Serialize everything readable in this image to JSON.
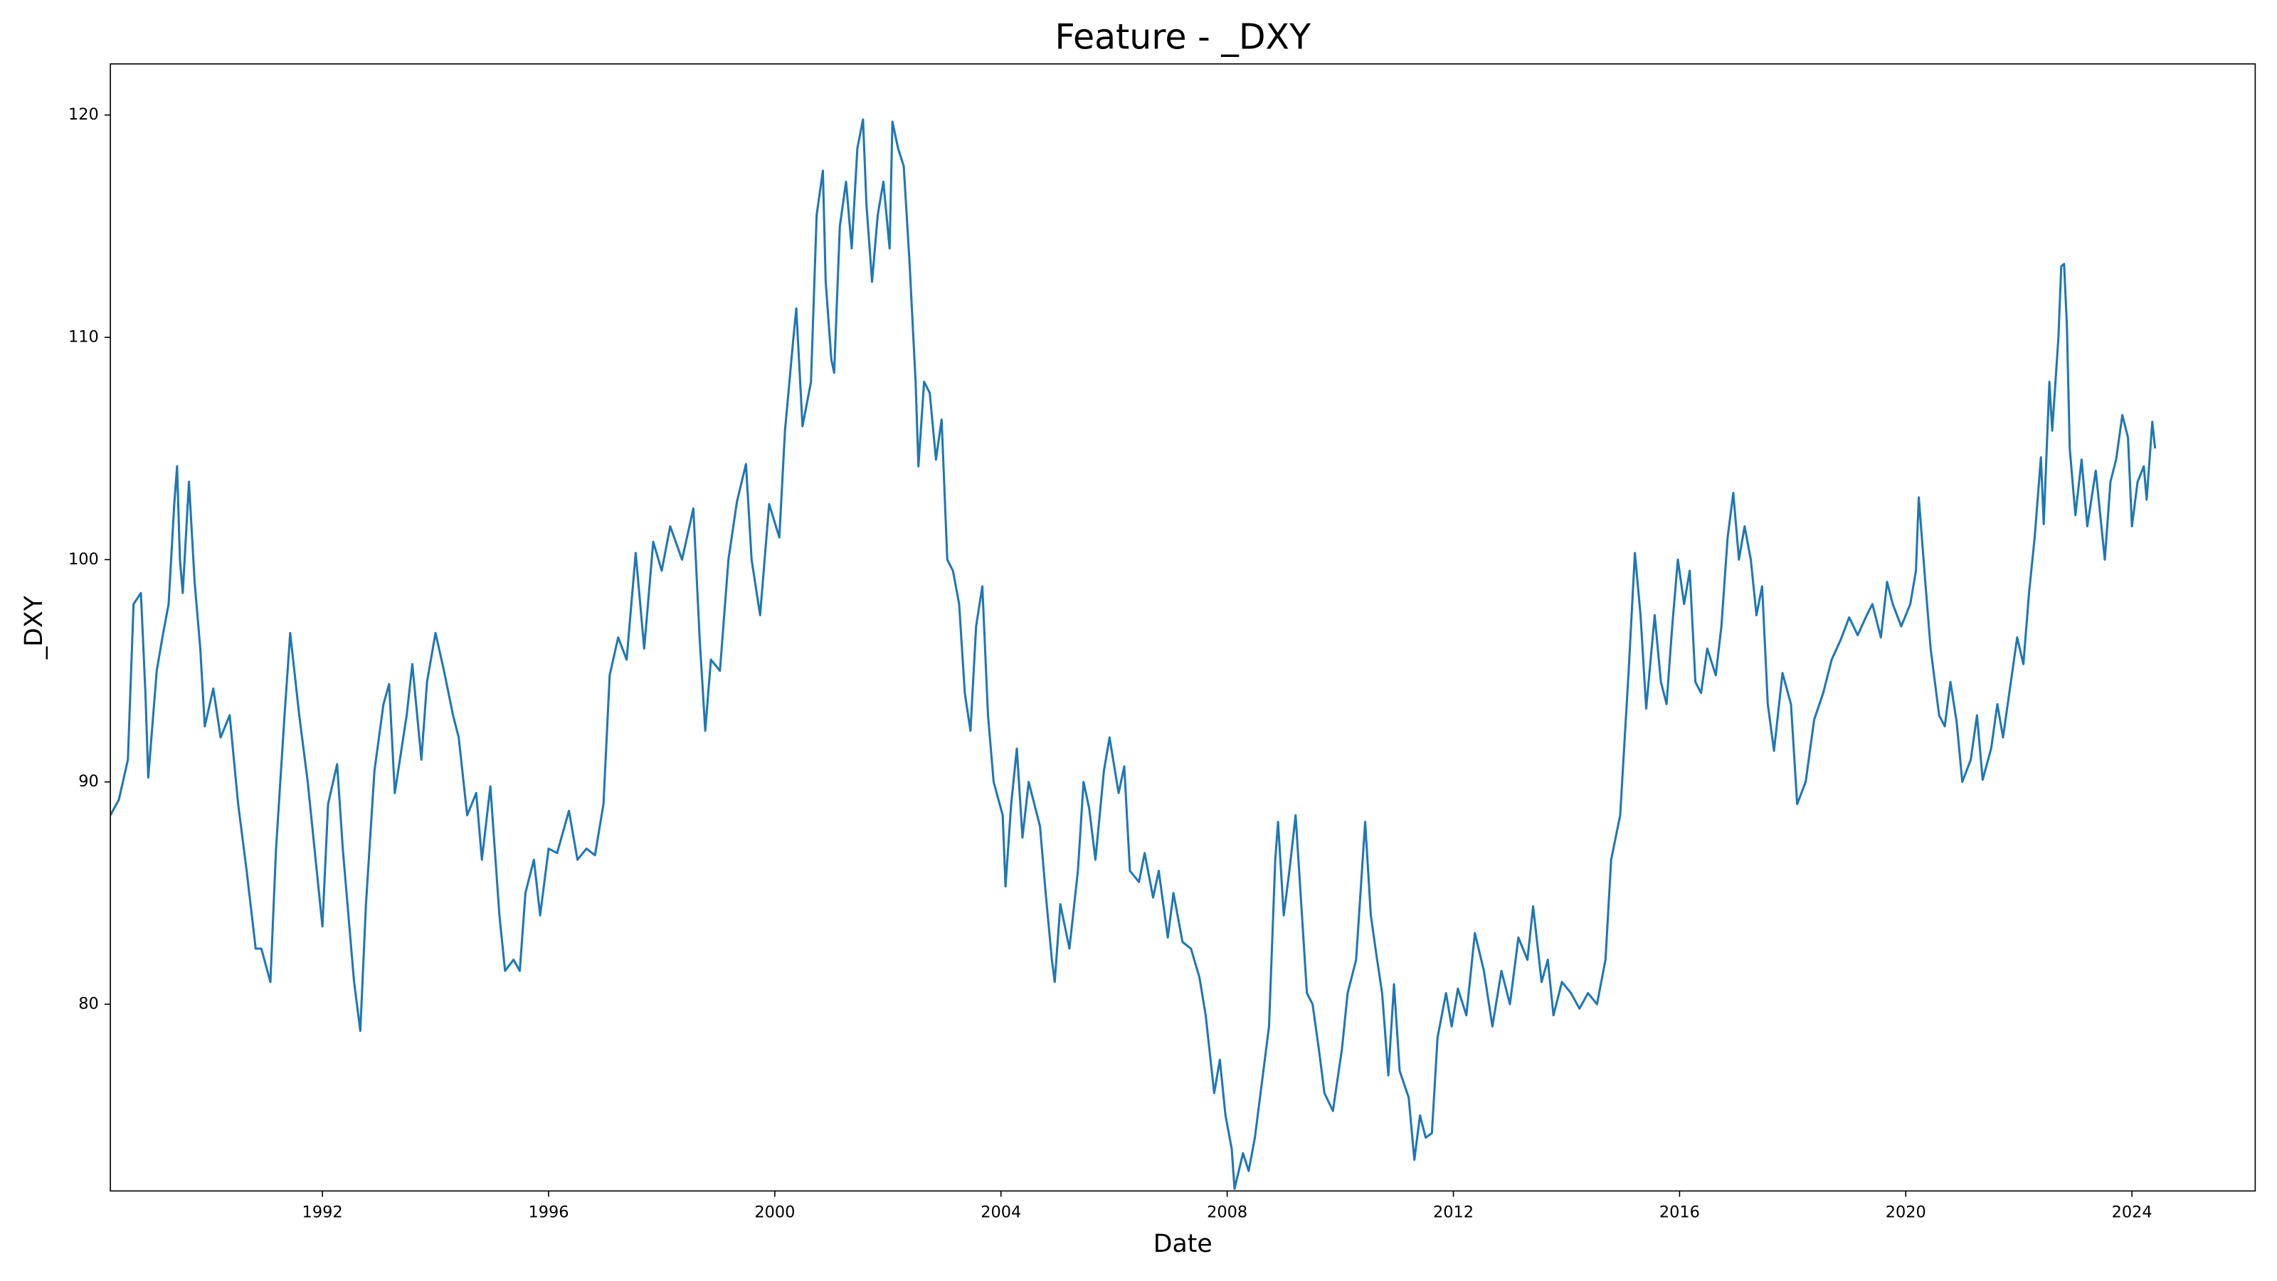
{
  "chart_data": {
    "type": "line",
    "title": "Feature - _DXY",
    "x_label": "Date",
    "y_label": "_DXY",
    "color": "#1f77b4",
    "xlim": [
      1988.25,
      2026.18
    ],
    "xticks": [
      1992,
      1996,
      2000,
      2004,
      2008,
      2012,
      2016,
      2020,
      2024
    ],
    "ylim": [
      71.6,
      122.3
    ],
    "yticks": [
      80,
      90,
      100,
      110,
      120
    ],
    "x": [
      1988.25,
      1988.4,
      1988.56,
      1988.66,
      1988.79,
      1988.87,
      1988.92,
      1989.07,
      1989.17,
      1989.28,
      1989.38,
      1989.43,
      1989.48,
      1989.53,
      1989.64,
      1989.74,
      1989.84,
      1989.92,
      1990.07,
      1990.2,
      1990.36,
      1990.51,
      1990.66,
      1990.82,
      1990.92,
      1991.08,
      1991.18,
      1991.33,
      1991.43,
      1991.59,
      1991.74,
      1991.9,
      1992.0,
      1992.1,
      1992.26,
      1992.36,
      1992.46,
      1992.56,
      1992.67,
      1992.77,
      1992.92,
      1993.08,
      1993.18,
      1993.28,
      1993.49,
      1993.59,
      1993.75,
      1993.85,
      1994.0,
      1994.15,
      1994.31,
      1994.41,
      1994.56,
      1994.72,
      1994.82,
      1994.97,
      1995.13,
      1995.23,
      1995.38,
      1995.49,
      1995.59,
      1995.74,
      1995.85,
      1996.0,
      1996.15,
      1996.36,
      1996.51,
      1996.67,
      1996.82,
      1996.97,
      1997.08,
      1997.23,
      1997.38,
      1997.54,
      1997.69,
      1997.85,
      1998.0,
      1998.15,
      1998.36,
      1998.56,
      1998.67,
      1998.77,
      1998.87,
      1999.03,
      1999.18,
      1999.33,
      1999.49,
      1999.59,
      1999.74,
      1999.9,
      2000.08,
      2000.18,
      2000.33,
      2000.38,
      2000.49,
      2000.64,
      2000.74,
      2000.85,
      2000.9,
      2001.0,
      2001.05,
      2001.15,
      2001.26,
      2001.36,
      2001.46,
      2001.56,
      2001.62,
      2001.72,
      2001.82,
      2001.92,
      2002.03,
      2002.08,
      2002.18,
      2002.28,
      2002.38,
      2002.49,
      2002.54,
      2002.64,
      2002.74,
      2002.85,
      2002.95,
      2003.05,
      2003.15,
      2003.26,
      2003.36,
      2003.46,
      2003.56,
      2003.67,
      2003.77,
      2003.87,
      2004.03,
      2004.08,
      2004.18,
      2004.28,
      2004.38,
      2004.49,
      2004.59,
      2004.69,
      2004.79,
      2004.9,
      2004.95,
      2005.05,
      2005.21,
      2005.36,
      2005.46,
      2005.56,
      2005.67,
      2005.82,
      2005.92,
      2006.08,
      2006.18,
      2006.28,
      2006.44,
      2006.54,
      2006.69,
      2006.79,
      2006.95,
      2007.05,
      2007.21,
      2007.36,
      2007.51,
      2007.62,
      2007.77,
      2007.87,
      2007.97,
      2008.08,
      2008.13,
      2008.28,
      2008.38,
      2008.49,
      2008.64,
      2008.74,
      2008.85,
      2008.9,
      2009.0,
      2009.1,
      2009.21,
      2009.31,
      2009.41,
      2009.51,
      2009.62,
      2009.72,
      2009.87,
      2010.03,
      2010.13,
      2010.28,
      2010.44,
      2010.54,
      2010.64,
      2010.74,
      2010.85,
      2010.95,
      2011.05,
      2011.21,
      2011.31,
      2011.41,
      2011.51,
      2011.62,
      2011.72,
      2011.87,
      2011.97,
      2012.08,
      2012.23,
      2012.38,
      2012.54,
      2012.69,
      2012.85,
      2013.0,
      2013.15,
      2013.31,
      2013.41,
      2013.56,
      2013.67,
      2013.77,
      2013.92,
      2014.08,
      2014.23,
      2014.38,
      2014.54,
      2014.69,
      2014.79,
      2014.95,
      2015.1,
      2015.21,
      2015.31,
      2015.41,
      2015.56,
      2015.67,
      2015.77,
      2015.87,
      2015.97,
      2016.08,
      2016.18,
      2016.28,
      2016.38,
      2016.49,
      2016.64,
      2016.74,
      2016.85,
      2016.95,
      2017.05,
      2017.15,
      2017.26,
      2017.36,
      2017.46,
      2017.56,
      2017.67,
      2017.82,
      2017.97,
      2018.08,
      2018.23,
      2018.38,
      2018.54,
      2018.69,
      2018.85,
      2019.0,
      2019.15,
      2019.31,
      2019.41,
      2019.56,
      2019.67,
      2019.77,
      2019.92,
      2020.08,
      2020.18,
      2020.23,
      2020.33,
      2020.44,
      2020.59,
      2020.69,
      2020.79,
      2020.9,
      2021.0,
      2021.15,
      2021.26,
      2021.36,
      2021.51,
      2021.62,
      2021.72,
      2021.82,
      2021.97,
      2022.08,
      2022.18,
      2022.28,
      2022.39,
      2022.44,
      2022.54,
      2022.59,
      2022.7,
      2022.75,
      2022.8,
      2022.85,
      2022.9,
      2023.0,
      2023.11,
      2023.21,
      2023.36,
      2023.52,
      2023.62,
      2023.72,
      2023.83,
      2023.93,
      2024.0,
      2024.1,
      2024.21,
      2024.26,
      2024.36,
      2024.41
    ],
    "values": [
      88.5,
      89.2,
      91,
      98,
      98.5,
      94,
      90.2,
      95,
      96.5,
      98,
      102.5,
      104.2,
      100,
      98.5,
      103.5,
      99,
      96,
      92.5,
      94.2,
      92,
      93,
      89,
      86,
      82.5,
      82.5,
      81,
      87,
      93,
      96.7,
      93,
      90,
      86,
      83.5,
      89,
      90.8,
      87,
      84,
      81,
      78.8,
      84.5,
      90.5,
      93.5,
      94.4,
      89.5,
      93,
      95.3,
      91,
      94.5,
      96.7,
      95,
      93,
      92,
      88.5,
      89.5,
      86.5,
      89.8,
      84,
      81.5,
      82,
      81.5,
      85,
      86.5,
      84,
      87,
      86.8,
      88.7,
      86.5,
      87,
      86.7,
      89,
      94.8,
      96.5,
      95.5,
      100.3,
      96,
      100.8,
      99.5,
      101.5,
      100,
      102.3,
      96.5,
      92.3,
      95.5,
      95,
      100,
      102.6,
      104.3,
      100,
      97.5,
      102.5,
      101,
      105.8,
      110,
      111.3,
      106,
      108,
      115.5,
      117.5,
      112.5,
      109,
      108.4,
      115,
      117,
      114,
      118.5,
      119.8,
      116,
      112.5,
      115.5,
      117,
      114,
      119.7,
      118.5,
      117.7,
      113.5,
      108,
      104.2,
      108,
      107.5,
      104.5,
      106.3,
      100,
      99.5,
      98,
      94,
      92.3,
      97,
      98.8,
      93,
      90,
      88.5,
      85.3,
      89,
      91.5,
      87.5,
      90,
      89,
      88,
      85,
      82,
      81,
      84.5,
      82.5,
      86,
      90,
      88.8,
      86.5,
      90.5,
      92,
      89.5,
      90.7,
      86,
      85.5,
      86.8,
      84.8,
      86,
      83,
      85,
      82.8,
      82.5,
      81.2,
      79.5,
      76,
      77.5,
      75,
      73.5,
      71.7,
      73.3,
      72.5,
      74,
      77,
      79,
      86.5,
      88.2,
      84,
      86,
      88.5,
      84.5,
      80.5,
      80,
      78,
      76,
      75.2,
      78,
      80.5,
      82,
      88.2,
      84,
      82.2,
      80.5,
      76.8,
      80.9,
      77,
      75.8,
      73,
      75,
      74,
      74.2,
      78.5,
      80.5,
      79,
      80.7,
      79.5,
      83.2,
      81.5,
      79,
      81.5,
      80,
      83,
      82,
      84.4,
      81,
      82,
      79.5,
      81,
      80.5,
      79.8,
      80.5,
      80,
      82,
      86.5,
      88.5,
      95,
      100.3,
      97.5,
      93.3,
      97.5,
      94.5,
      93.5,
      97,
      100,
      98,
      99.5,
      94.5,
      94,
      96,
      94.8,
      97,
      101,
      103,
      100,
      101.5,
      100,
      97.5,
      98.8,
      93.5,
      91.4,
      94.9,
      93.5,
      89,
      90,
      92.8,
      94,
      95.5,
      96.4,
      97.4,
      96.6,
      97.5,
      98,
      96.5,
      99,
      98,
      97,
      98,
      99.5,
      102.8,
      99.5,
      96,
      93,
      92.5,
      94.5,
      92.7,
      90,
      91,
      93,
      90.1,
      91.5,
      93.5,
      92,
      93.8,
      96.5,
      95.3,
      98.5,
      101,
      104.6,
      101.6,
      108,
      105.8,
      110,
      113.2,
      113.3,
      110.5,
      105,
      102,
      104.5,
      101.5,
      104,
      100,
      103.5,
      104.5,
      106.5,
      105.5,
      101.5,
      103.5,
      104.2,
      102.7,
      106.2,
      105
    ]
  }
}
